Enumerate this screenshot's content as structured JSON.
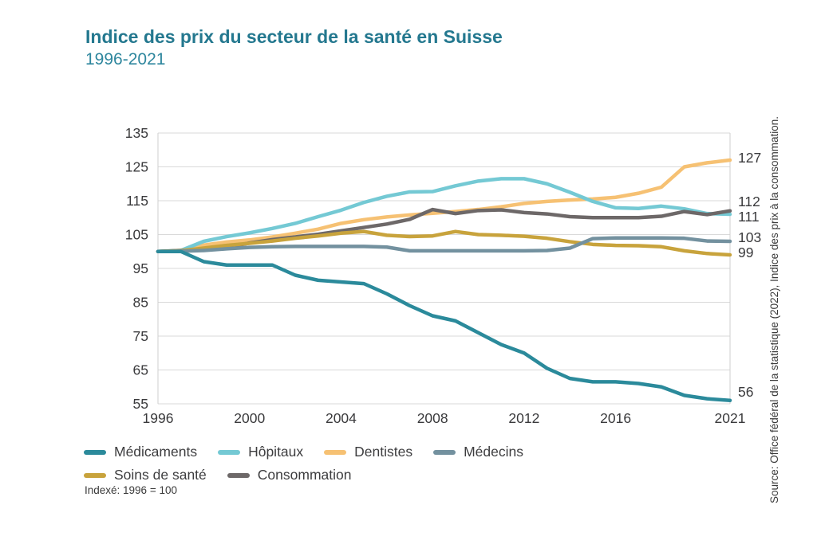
{
  "header": {
    "title": "Indice des prix du secteur de la santé en Suisse",
    "subtitle": "1996-2021"
  },
  "footnote": "Indexé: 1996 = 100",
  "source_note": "Source: Office fédéral de la statistique (2022), Indice des prix à la consommation.",
  "chart_data": {
    "type": "line",
    "title": "Indice des prix du secteur de la santé en Suisse 1996-2021",
    "x": [
      1996,
      1997,
      1998,
      1999,
      2000,
      2001,
      2002,
      2003,
      2004,
      2005,
      2006,
      2007,
      2008,
      2009,
      2010,
      2011,
      2012,
      2013,
      2014,
      2015,
      2016,
      2017,
      2018,
      2019,
      2020,
      2021
    ],
    "x_tick_labels": [
      "1996",
      "2000",
      "2004",
      "2008",
      "2012",
      "2016",
      "2021"
    ],
    "y_ticks": [
      135,
      125,
      115,
      105,
      95,
      85,
      75,
      65,
      55
    ],
    "ylim": [
      55,
      135
    ],
    "grid": "horizontal",
    "legend_position": "bottom-left",
    "legend_order": [
      "Médicaments",
      "Hôpitaux",
      "Dentistes",
      "Médecins",
      "Soins de santé",
      "Consommation"
    ],
    "axis_text_color": "#3a3a3c",
    "grid_color": "#d9d9d9",
    "series": [
      {
        "name": "Dentistes",
        "color": "#f6c173",
        "end_label": "127",
        "values": [
          100,
          100.2,
          101.9,
          102.8,
          103.4,
          104.3,
          105.4,
          106.6,
          108.3,
          109.4,
          110.2,
          110.8,
          111.3,
          111.8,
          112.4,
          113.2,
          114.2,
          114.8,
          115.2,
          115.5,
          116,
          117.2,
          119,
          125,
          126.2,
          127
        ]
      },
      {
        "name": "Hôpitaux",
        "color": "#74c9d4",
        "end_label": "111",
        "values": [
          100,
          100.3,
          103,
          104.4,
          105.5,
          106.8,
          108.3,
          110.3,
          112.2,
          114.5,
          116.3,
          117.6,
          117.7,
          119.4,
          120.8,
          121.5,
          121.5,
          120,
          117.5,
          114.8,
          112.9,
          112.7,
          113.4,
          112.6,
          111.2,
          111
        ]
      },
      {
        "name": "Consommation",
        "color": "#6d6868",
        "end_label": "112",
        "values": [
          100,
          100.3,
          100.4,
          101.2,
          102.5,
          103.5,
          104.3,
          105.1,
          106.1,
          107.1,
          108.1,
          109.5,
          112.4,
          111.2,
          112.1,
          112.3,
          111.5,
          111.1,
          110.3,
          110,
          110,
          110,
          110.4,
          111.8,
          110.9,
          112
        ]
      },
      {
        "name": "Soins de santé",
        "color": "#c8a33c",
        "end_label": "99",
        "values": [
          100,
          100.2,
          101,
          101.8,
          102.4,
          103.1,
          103.9,
          104.6,
          105.4,
          105.9,
          104.8,
          104.4,
          104.6,
          105.9,
          105,
          104.8,
          104.5,
          103.9,
          102.9,
          102.1,
          101.8,
          101.7,
          101.4,
          100.2,
          99.4,
          99
        ]
      },
      {
        "name": "Médecins",
        "color": "#73919f",
        "end_label": "103",
        "values": [
          100,
          100.1,
          100.3,
          100.8,
          101.2,
          101.4,
          101.5,
          101.5,
          101.5,
          101.5,
          101.3,
          100.2,
          100.2,
          100.2,
          100.2,
          100.2,
          100.2,
          100.3,
          101,
          103.8,
          104,
          104,
          104,
          103.9,
          103.1,
          103
        ]
      },
      {
        "name": "Médicaments",
        "color": "#2b8a9b",
        "end_label": "56",
        "values": [
          100,
          100,
          97,
          96,
          96,
          96,
          93,
          91.5,
          91,
          90.5,
          87.5,
          84,
          81,
          79.5,
          76,
          72.5,
          70,
          65.5,
          62.5,
          61.5,
          61.5,
          61,
          60,
          57.5,
          56.5,
          56
        ]
      }
    ]
  }
}
